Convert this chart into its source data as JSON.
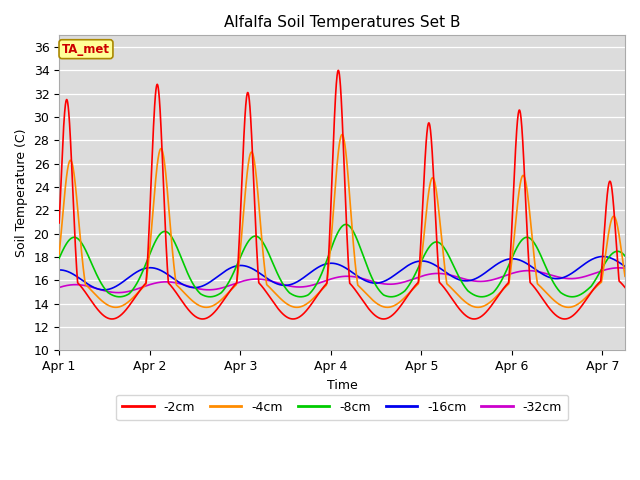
{
  "title": "Alfalfa Soil Temperatures Set B",
  "xlabel": "Time",
  "ylabel": "Soil Temperature (C)",
  "ylim": [
    10,
    37
  ],
  "yticks": [
    10,
    12,
    14,
    16,
    18,
    20,
    22,
    24,
    26,
    28,
    30,
    32,
    34,
    36
  ],
  "xtick_labels": [
    "Apr 1",
    "Apr 2",
    "Apr 3",
    "Apr 4",
    "Apr 5",
    "Apr 6",
    "Apr 7"
  ],
  "bg_color": "#dcdcdc",
  "series_colors": {
    "-2cm": "#ff0000",
    "-4cm": "#ff8c00",
    "-8cm": "#00cc00",
    "-16cm": "#0000ee",
    "-32cm": "#cc00cc"
  },
  "annotation_text": "TA_met",
  "annotation_bg": "#ffff99",
  "annotation_border": "#aa8800",
  "m2cm_peaks": [
    31.5,
    32.8,
    32.1,
    34.0,
    29.5,
    30.6,
    24.5
  ],
  "m2cm_troughs": [
    11.0,
    12.5,
    12.0,
    13.0,
    11.5,
    12.0,
    14.5
  ],
  "m2cm_peak_hours": [
    0,
    24,
    48,
    72,
    96,
    120,
    144
  ],
  "m2cm_trough_offsets": [
    12,
    12,
    12,
    12,
    12,
    12,
    12
  ],
  "m4cm_peaks": [
    26.5,
    27.3,
    27.0,
    28.5,
    24.8,
    25.0,
    21.0
  ],
  "m4cm_troughs": [
    13.5,
    14.0,
    13.8,
    13.5,
    13.2,
    13.5,
    15.0
  ],
  "m8cm_peaks": [
    19.7,
    20.2,
    19.8,
    20.8,
    19.3,
    19.7,
    18.5
  ],
  "m8cm_troughs": [
    14.5,
    13.2,
    14.3,
    14.2,
    14.0,
    13.8,
    15.5
  ],
  "m16cm_base": 16.0,
  "m32cm_base": 15.2
}
